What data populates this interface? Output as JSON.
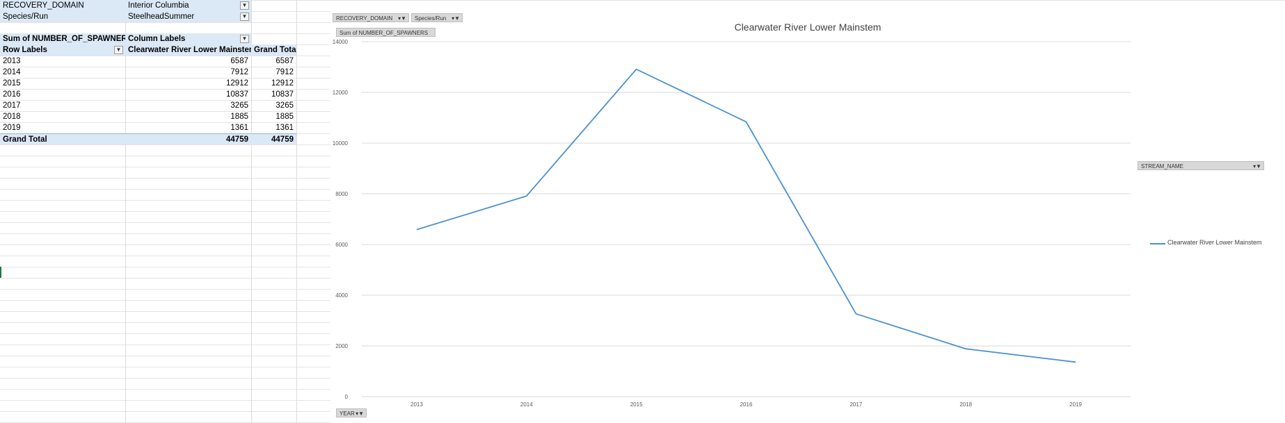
{
  "pivot": {
    "filters": [
      {
        "field": "RECOVERY_DOMAIN",
        "value": "Interior Columbia"
      },
      {
        "field": "Species/Run",
        "value": "SteelheadSummer"
      }
    ],
    "value_header": "Sum of NUMBER_OF_SPAWNERS",
    "column_labels": "Column Labels",
    "row_labels": "Row Labels",
    "column_name": "Clearwater River Lower Mainstem",
    "grand_total_header": "Grand Total",
    "rows": [
      {
        "year": "2013",
        "value": "6587",
        "total": "6587"
      },
      {
        "year": "2014",
        "value": "7912",
        "total": "7912"
      },
      {
        "year": "2015",
        "value": "12912",
        "total": "12912"
      },
      {
        "year": "2016",
        "value": "10837",
        "total": "10837"
      },
      {
        "year": "2017",
        "value": "3265",
        "total": "3265"
      },
      {
        "year": "2018",
        "value": "1885",
        "total": "1885"
      },
      {
        "year": "2019",
        "value": "1361",
        "total": "1361"
      }
    ],
    "grand_total_label": "Grand Total",
    "grand_total_value": "44759",
    "grand_total_total": "44759"
  },
  "chart_buttons": {
    "recovery_domain": "RECOVERY_DOMAIN",
    "species_run": "Species/Run",
    "sum_field": "Sum of NUMBER_OF_SPAWNERS",
    "stream_name": "STREAM_NAME",
    "year": "YEAR"
  },
  "chart_data": {
    "type": "line",
    "title": "Clearwater River Lower Mainstem",
    "categories": [
      "2013",
      "2014",
      "2015",
      "2016",
      "2017",
      "2018",
      "2019"
    ],
    "series": [
      {
        "name": "Clearwater River Lower Mainstem",
        "values": [
          6587,
          7912,
          12912,
          10837,
          3265,
          1885,
          1361
        ]
      }
    ],
    "ylim": [
      0,
      14000
    ],
    "yticks": [
      0,
      2000,
      4000,
      6000,
      8000,
      10000,
      12000,
      14000
    ],
    "grid": true,
    "legend_position": "right",
    "colors": {
      "series": "#4a90d0",
      "grid": "#d9d9d9",
      "axis_text": "#595959"
    }
  }
}
